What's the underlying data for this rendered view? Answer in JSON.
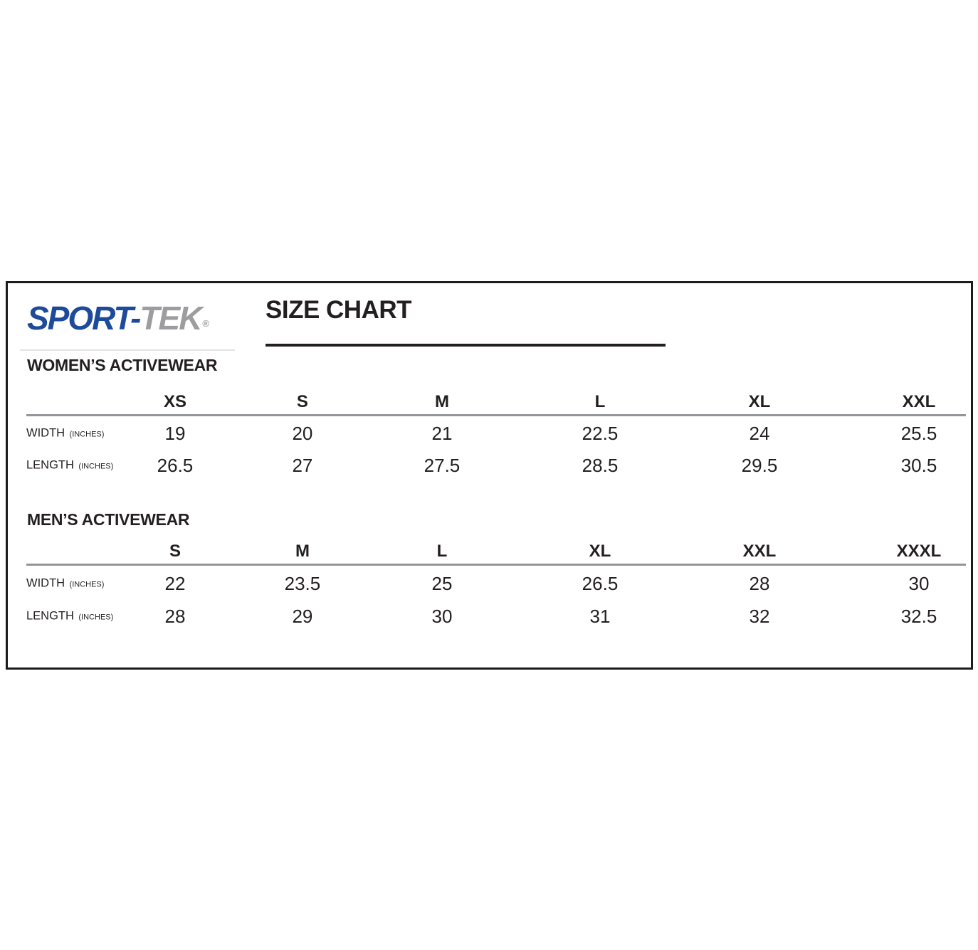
{
  "brand": {
    "name_primary": "SPORT-",
    "name_secondary": "TEK",
    "registered_mark": "®"
  },
  "title": "SIZE CHART",
  "colors": {
    "brand_blue": "#1e4a9a",
    "brand_gray": "#9d9d9f",
    "ink": "#231f20",
    "rule_gray": "#939598",
    "border_black": "#1c1c1c"
  },
  "sections": [
    {
      "heading": "WOMEN’S ACTIVEWEAR",
      "sizes": [
        "XS",
        "S",
        "M",
        "L",
        "XL",
        "XXL"
      ],
      "rows": [
        {
          "label": "WIDTH",
          "unit": "(INCHES)",
          "values": [
            "19",
            "20",
            "21",
            "22.5",
            "24",
            "25.5"
          ]
        },
        {
          "label": "LENGTH",
          "unit": "(INCHES)",
          "values": [
            "26.5",
            "27",
            "27.5",
            "28.5",
            "29.5",
            "30.5"
          ]
        }
      ]
    },
    {
      "heading": "MEN’S ACTIVEWEAR",
      "sizes": [
        "S",
        "M",
        "L",
        "XL",
        "XXL",
        "XXXL"
      ],
      "rows": [
        {
          "label": "WIDTH",
          "unit": "(INCHES)",
          "values": [
            "22",
            "23.5",
            "25",
            "26.5",
            "28",
            "30"
          ]
        },
        {
          "label": "LENGTH",
          "unit": "(INCHES)",
          "values": [
            "28",
            "29",
            "30",
            "31",
            "32",
            "32.5"
          ]
        }
      ]
    }
  ]
}
